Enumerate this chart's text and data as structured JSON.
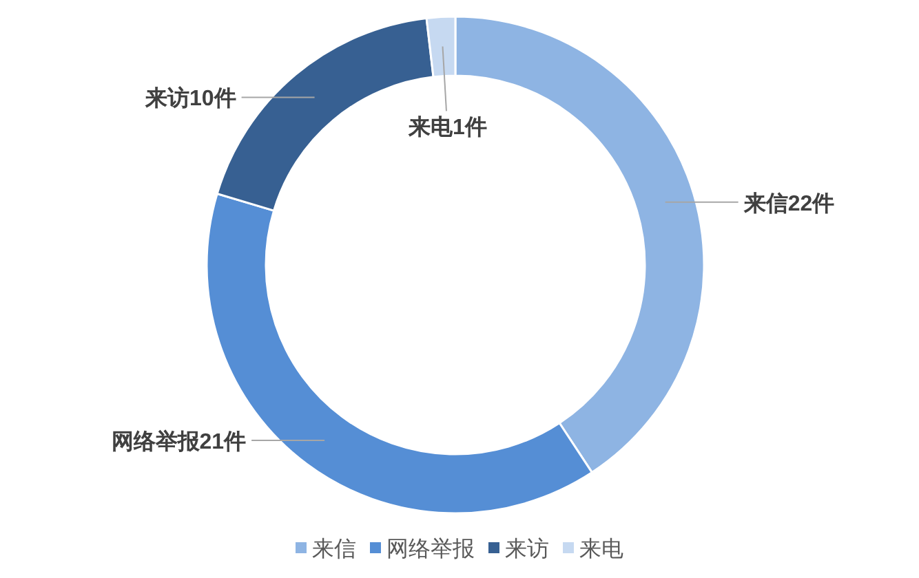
{
  "chart_data": {
    "type": "donut",
    "categories": [
      "来信",
      "网络举报",
      "来访",
      "来电"
    ],
    "values": [
      22,
      21,
      10,
      1
    ],
    "colors": [
      "#8eb4e3",
      "#558ed5",
      "#376092",
      "#c6d9f1"
    ],
    "value_labels": [
      "来信22件",
      "网络举报21件",
      "来访10件",
      "来电1件"
    ],
    "legend": "bottom"
  }
}
